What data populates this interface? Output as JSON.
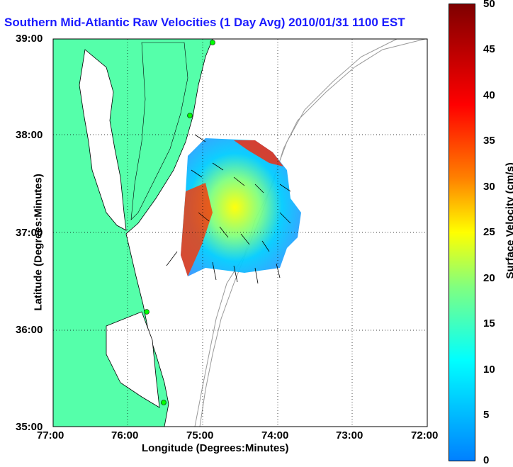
{
  "title": "Southern Mid-Atlantic Raw Velocities (1 Day Avg) 2010/01/31 1100 EST",
  "axes": {
    "xlabel": "Longitude (Degrees:Minutes)",
    "ylabel": "Latitude (Degrees:Minutes)",
    "xticks": [
      "77:00",
      "76:00",
      "75:00",
      "74:00",
      "73:00",
      "72:00"
    ],
    "yticks": [
      "39:00",
      "38:00",
      "37:00",
      "36:00",
      "35:00"
    ]
  },
  "colorbar": {
    "label": "Surface Velocity (cm/s)",
    "ticks": [
      "50",
      "45",
      "40",
      "35",
      "30",
      "25",
      "20",
      "15",
      "10",
      "5",
      "0"
    ],
    "range": [
      0,
      50
    ]
  },
  "colors": {
    "land": "#55ffaa",
    "title": "#1a1aff",
    "coast": "#000000",
    "bathymetry": "#999999"
  }
}
